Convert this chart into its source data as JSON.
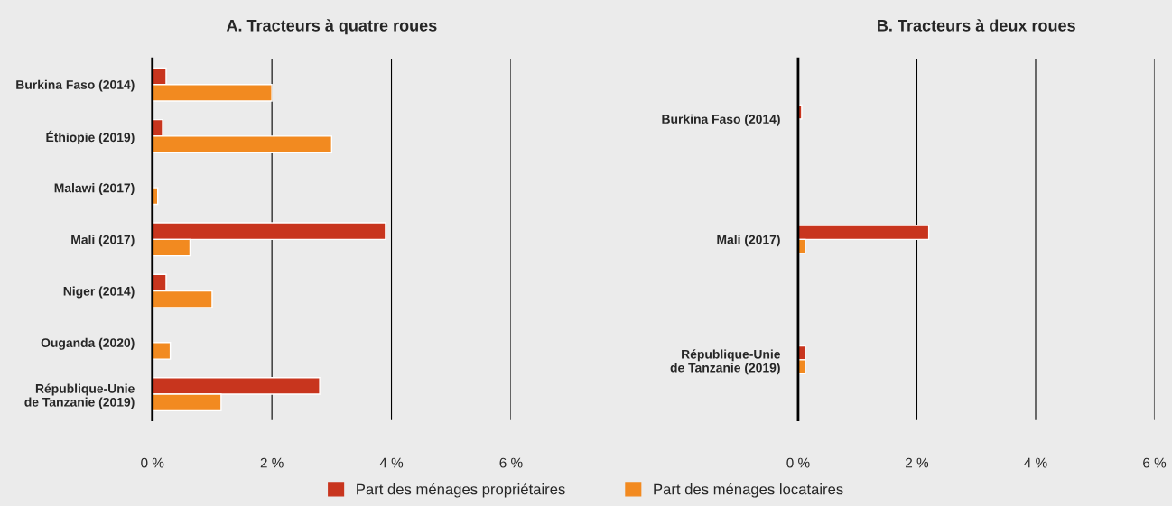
{
  "chart_data": [
    {
      "type": "bar",
      "orientation": "horizontal",
      "title": "A. Tracteurs à quatre roues",
      "categories": [
        "Burkina Faso (2014)",
        "Éthiopie (2019)",
        "Malawi (2017)",
        "Mali (2017)",
        "Niger (2014)",
        "Ouganda (2020)",
        "République-Unie\nde Tanzanie (2019)"
      ],
      "series": [
        {
          "name": "Part des ménages propriétaires",
          "color": "#c8351e",
          "values": [
            0.23,
            0.17,
            null,
            3.9,
            0.23,
            null,
            2.8
          ]
        },
        {
          "name": "Part des ménages locataires",
          "color": "#f28a20",
          "values": [
            2.0,
            3.0,
            0.09,
            0.63,
            1.0,
            0.3,
            1.15
          ]
        }
      ],
      "xlim": [
        0,
        6
      ],
      "xticks": [
        {
          "value": 0,
          "label": "0 %"
        },
        {
          "value": 2,
          "label": "2 %"
        },
        {
          "value": 4,
          "label": "4 %"
        },
        {
          "value": 6,
          "label": "6 %"
        }
      ],
      "grid": "x",
      "legend": "bottom"
    },
    {
      "type": "bar",
      "orientation": "horizontal",
      "title": "B. Tracteurs à deux roues",
      "categories": [
        "Burkina Faso (2014)",
        "Mali (2017)",
        "République-Unie\nde Tanzanie (2019)"
      ],
      "series": [
        {
          "color": "#c8351e",
          "values": [
            0.06,
            2.2,
            0.12
          ]
        },
        {
          "color": "#f28a20",
          "values": [
            null,
            0.12,
            0.12
          ]
        }
      ],
      "xlim": [
        0,
        6
      ],
      "xticks": [
        {
          "value": 0,
          "label": "0 %"
        },
        {
          "value": 2,
          "label": "2 %"
        },
        {
          "value": 4,
          "label": "4 %"
        },
        {
          "value": 6,
          "label": "6 %"
        }
      ],
      "grid": "x"
    }
  ]
}
